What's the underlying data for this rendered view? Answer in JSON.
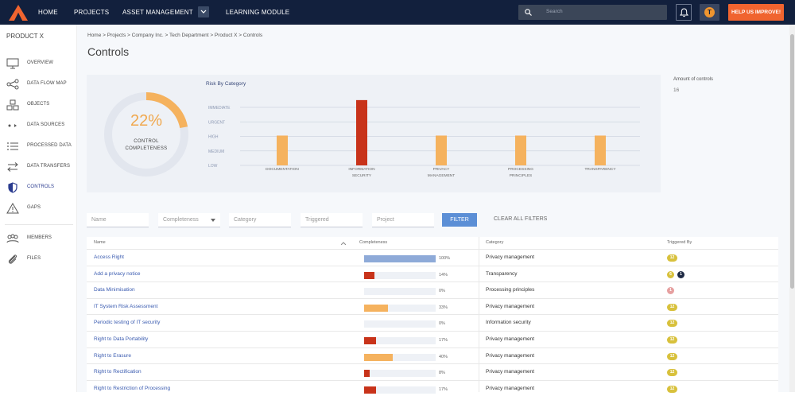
{
  "nav": {
    "home": "HOME",
    "projects": "PROJECTS",
    "asset_management": "ASSET MANAGEMENT",
    "learning_module": "LEARNING MODULE"
  },
  "search": {
    "placeholder": "Search"
  },
  "user": {
    "avatar_initial": "T"
  },
  "help_button": "HELP US IMPROVE!",
  "sidebar": {
    "title": "PRODUCT X",
    "items": [
      {
        "label": "OVERVIEW",
        "icon": "monitor-icon"
      },
      {
        "label": "DATA FLOW MAP",
        "icon": "share-icon"
      },
      {
        "label": "OBJECTS",
        "icon": "objects-icon"
      },
      {
        "label": "DATA SOURCES",
        "icon": "data-sources-icon"
      },
      {
        "label": "PROCESSED DATA",
        "icon": "list-icon"
      },
      {
        "label": "DATA TRANSFERS",
        "icon": "transfer-icon"
      },
      {
        "label": "CONTROLS",
        "icon": "shield-icon"
      },
      {
        "label": "GAPS",
        "icon": "warning-icon"
      },
      {
        "label": "MEMBERS",
        "icon": "members-icon"
      },
      {
        "label": "FILES",
        "icon": "paperclip-icon"
      }
    ]
  },
  "breadcrumb": "Home > Projects > Company Inc. > Tech Department > Product X > Controls",
  "page_title": "Controls",
  "completeness": {
    "percent": "22%",
    "value": 0.22,
    "label_line1": "CONTROL",
    "label_line2": "COMPLETENESS"
  },
  "amount": {
    "label": "Amount of controls",
    "value": "16"
  },
  "chart_data": {
    "type": "bar",
    "title": "Risk By Category",
    "levels": [
      "IMMEDIATE",
      "URGENT",
      "HIGH",
      "MEDIUM",
      "LOW"
    ],
    "categories": [
      [
        "DOCUMENTATION",
        ""
      ],
      [
        "INFORMATION",
        "SECURITY"
      ],
      [
        "PRIVACY",
        "MANAGEMENT"
      ],
      [
        "PROCESSING",
        "PRINCIPLES"
      ],
      [
        "TRANSPARENCY",
        ""
      ]
    ],
    "values": [
      1.85,
      4.05,
      1.85,
      1.85,
      1.85
    ],
    "colors": [
      "#f5b25e",
      "#c8331a",
      "#f5b25e",
      "#f5b25e",
      "#f5b25e"
    ],
    "ylim": [
      0,
      4.5
    ]
  },
  "filters": {
    "name": "Name",
    "completeness": "Completeness",
    "category": "Category",
    "triggered": "Triggered",
    "project": "Project",
    "filter_btn": "FILTER",
    "clear_btn": "CLEAR ALL FILTERS"
  },
  "table": {
    "headers": {
      "name": "Name",
      "completeness": "Completeness",
      "category": "Category",
      "triggered_by": "Triggered By"
    },
    "rows": [
      {
        "name": "Access Right",
        "pct": "100%",
        "value": 1.0,
        "color": "#8eaad8",
        "category": "Privacy management",
        "badges": [
          {
            "text": "12",
            "color": "#d8c13c"
          }
        ]
      },
      {
        "name": "Add a privacy notice",
        "pct": "14%",
        "value": 0.14,
        "color": "#c8331a",
        "category": "Transparency",
        "badges": [
          {
            "text": "6",
            "color": "#d8c13c"
          },
          {
            "text": "1",
            "color": "#1e2a44"
          }
        ]
      },
      {
        "name": "Data Minimisation",
        "pct": "0%",
        "value": 0,
        "color": "#c8331a",
        "category": "Processing principles",
        "badges": [
          {
            "text": "1",
            "color": "#e6a0a0"
          }
        ]
      },
      {
        "name": "IT System Risk Assessment",
        "pct": "33%",
        "value": 0.33,
        "color": "#f5b25e",
        "category": "Privacy management",
        "badges": [
          {
            "text": "12",
            "color": "#d8c13c"
          }
        ]
      },
      {
        "name": "Periodic testing of IT security",
        "pct": "0%",
        "value": 0,
        "color": "#c8331a",
        "category": "Information security",
        "badges": [
          {
            "text": "12",
            "color": "#d8c13c"
          }
        ]
      },
      {
        "name": "Right to Data Portability",
        "pct": "17%",
        "value": 0.17,
        "color": "#c8331a",
        "category": "Privacy management",
        "badges": [
          {
            "text": "12",
            "color": "#d8c13c"
          }
        ]
      },
      {
        "name": "Right to Erasure",
        "pct": "40%",
        "value": 0.4,
        "color": "#f5b25e",
        "category": "Privacy management",
        "badges": [
          {
            "text": "12",
            "color": "#d8c13c"
          }
        ]
      },
      {
        "name": "Right to Rectification",
        "pct": "8%",
        "value": 0.08,
        "color": "#c8331a",
        "category": "Privacy management",
        "badges": [
          {
            "text": "12",
            "color": "#d8c13c"
          }
        ]
      },
      {
        "name": "Right to Restriction of Processing",
        "pct": "17%",
        "value": 0.17,
        "color": "#c8331a",
        "category": "Privacy management",
        "badges": [
          {
            "text": "12",
            "color": "#d8c13c"
          }
        ]
      }
    ]
  }
}
